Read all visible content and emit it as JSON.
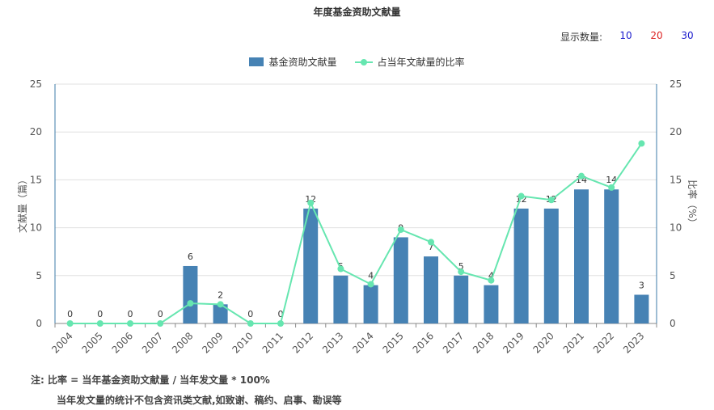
{
  "title": "年度基金资助文献量",
  "display_count": {
    "label": "显示数量:",
    "options": [
      {
        "text": "10",
        "color": "#1a1acc"
      },
      {
        "text": "20",
        "color": "#dd2222"
      },
      {
        "text": "30",
        "color": "#1a1acc"
      }
    ]
  },
  "legend": {
    "bar": "基金资助文献量",
    "line": "占当年文献量的比率"
  },
  "colors": {
    "bar": "#4682b4",
    "line": "#66e6b0"
  },
  "chart_data": {
    "type": "bar",
    "categories": [
      "2004",
      "2005",
      "2006",
      "2007",
      "2008",
      "2009",
      "2010",
      "2011",
      "2012",
      "2013",
      "2014",
      "2015",
      "2016",
      "2017",
      "2018",
      "2019",
      "2020",
      "2021",
      "2022",
      "2023"
    ],
    "series": [
      {
        "name": "基金资助文献量",
        "type": "bar",
        "axis": "left",
        "values": [
          0,
          0,
          0,
          0,
          6,
          2,
          0,
          0,
          12,
          5,
          4,
          9,
          7,
          5,
          4,
          12,
          12,
          14,
          14,
          3
        ]
      },
      {
        "name": "占当年文献量的比率",
        "type": "line",
        "axis": "right",
        "values": [
          0,
          0,
          0,
          0,
          2.1,
          2.0,
          0,
          0,
          12.6,
          5.7,
          4.1,
          9.8,
          8.5,
          5.4,
          4.5,
          13.3,
          12.9,
          15.4,
          14.2,
          18.8
        ]
      }
    ],
    "ylabel": "文献量（篇）",
    "y2label": "比率（%）",
    "ylim": [
      0,
      25
    ],
    "y2lim": [
      0,
      25
    ],
    "yticks": [
      0,
      5,
      10,
      15,
      20,
      25
    ],
    "grid": true,
    "legend_position": "top-center"
  },
  "notes": {
    "line1": "注:   比率 = 当年基金资助文献量 / 当年发文量 * 100%",
    "line2": "当年发文量的统计不包含资讯类文献,如致谢、稿约、启事、勘误等"
  }
}
